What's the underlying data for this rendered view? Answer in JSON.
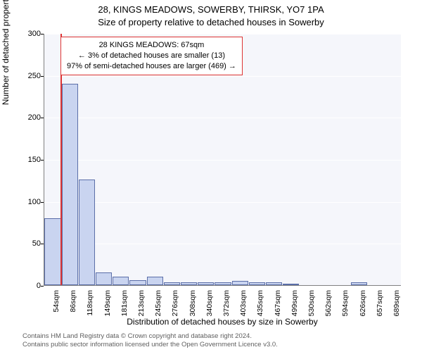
{
  "header": {
    "address": "28, KINGS MEADOWS, SOWERBY, THIRSK, YO7 1PA",
    "subtitle": "Size of property relative to detached houses in Sowerby"
  },
  "chart": {
    "type": "histogram",
    "background_color": "#f5f6fb",
    "grid_color": "#ffffff",
    "axis_color": "#808080",
    "bar_fill": "#c9d4f0",
    "bar_stroke": "#5b6ea8",
    "ylim": [
      0,
      300
    ],
    "yticks": [
      0,
      50,
      100,
      150,
      200,
      250,
      300
    ],
    "ylabel": "Number of detached properties",
    "xlabel": "Distribution of detached houses by size in Sowerby",
    "categories": [
      "54sqm",
      "86sqm",
      "118sqm",
      "149sqm",
      "181sqm",
      "213sqm",
      "245sqm",
      "276sqm",
      "308sqm",
      "340sqm",
      "372sqm",
      "403sqm",
      "435sqm",
      "467sqm",
      "499sqm",
      "530sqm",
      "562sqm",
      "594sqm",
      "626sqm",
      "657sqm",
      "689sqm"
    ],
    "values": [
      80,
      240,
      126,
      15,
      10,
      6,
      10,
      3,
      3,
      3,
      3,
      5,
      3,
      3,
      1,
      0,
      0,
      0,
      3,
      0,
      0
    ],
    "marker": {
      "position_index": 0.45,
      "color": "#d33",
      "box_lines": [
        "28 KINGS MEADOWS: 67sqm",
        "← 3% of detached houses are smaller (13)",
        "97% of semi-detached houses are larger (469) →"
      ]
    },
    "label_fontsize": 12,
    "tick_fontsize": 11
  },
  "footer": {
    "line1": "Contains HM Land Registry data © Crown copyright and database right 2024.",
    "line2": "Contains public sector information licensed under the Open Government Licence v3.0."
  }
}
